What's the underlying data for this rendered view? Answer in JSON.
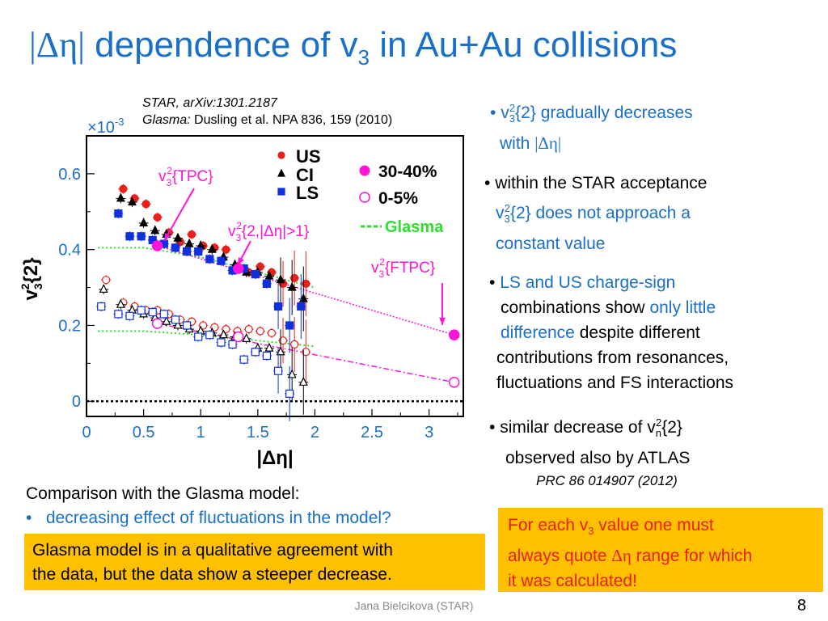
{
  "title": {
    "bars": "|Δη|",
    "text_a": " dependence of v",
    "sub": "3",
    "text_b": " in Au+Au collisions"
  },
  "refs": {
    "line1": "STAR, arXiv:1301.2187",
    "line2_label": "Glasma:",
    "line2_rest": " Dusling et al. NPA 836, 159 (2010)"
  },
  "bullets": {
    "b1": {
      "p1": "v",
      "sub": "3",
      "sup": "2",
      "p2": "{2} gradually decreases",
      "l2a": "with ",
      "l2b": "|Δη|"
    },
    "b2": {
      "l1": "within the STAR acceptance",
      "l2a": "v",
      "sub": "3",
      "sup": "2",
      "l2b": "{2} does not approach a",
      "l3": "constant value"
    },
    "b3": {
      "l1": "LS and US charge-sign",
      "l2a": "combinations show ",
      "l2b": "only little",
      "l3a": "difference",
      "l3b": " despite different",
      "l4": "contributions from resonances,",
      "l5": "fluctuations and FS  interactions"
    },
    "b4": {
      "l1a": "similar decrease of v",
      "sub": "n",
      "sup": "2",
      "l1b": "{2}",
      "l2": "observed also by ATLAS",
      "l3": "PRC 86 014907 (2012)"
    }
  },
  "comparison": {
    "line1": "Comparison with the Glasma model:",
    "line2": "decreasing effect of fluctuations in the model?"
  },
  "box1": {
    "line1": "Glasma model is in a qualitative agreement with",
    "line2": "the data, but the data show a steeper decrease."
  },
  "box2": {
    "l1a": "For each v",
    "sub": "3",
    "l1b": " value one must",
    "l2a": "always quote ",
    "l2b": "Δη",
    "l2c": " range for which",
    "l3": "it was calculated!"
  },
  "footer": "Jana Bielcikova (STAR)",
  "page_number": "8",
  "colors": {
    "title_blue": "#1a6fc8",
    "box": "#ffc000",
    "red_text": "#e8201a",
    "us": "#e8201a",
    "ls": "#1030e0",
    "magenta": "#ff14d8",
    "glasma": "#2ee02e"
  },
  "chart_data": {
    "type": "scatter",
    "xlabel": "|Δη|",
    "ylabel": "v3^2{2}",
    "y_multiplier": "×10-3",
    "xlim": [
      0,
      3.3
    ],
    "ylim": [
      -0.04,
      0.7
    ],
    "xticks": [
      "0",
      "0.5",
      "1",
      "1.5",
      "2",
      "2.5",
      "3"
    ],
    "yticks": [
      "0",
      "0.2",
      "0.4",
      "0.6"
    ],
    "legend": [
      {
        "label": "US",
        "marker": "filled-circle",
        "color": "#e8201a"
      },
      {
        "label": "CI",
        "marker": "filled-triangle",
        "color": "#000000"
      },
      {
        "label": "LS",
        "marker": "filled-square",
        "color": "#1030e0"
      },
      {
        "label": "30-40%",
        "marker": "big-filled-circle",
        "color": "#ff14d8"
      },
      {
        "label": "0-5%",
        "marker": "big-open-circle",
        "color": "#ff14d8"
      },
      {
        "label": "Glasma",
        "marker": "dashed-line",
        "color": "#2ee02e"
      }
    ],
    "annotations": [
      {
        "a": "v",
        "sub": "3",
        "sup": "2",
        "b": "{TPC}"
      },
      {
        "a": "v",
        "sub": "3",
        "sup": "2",
        "b": "{2,|Δη|>1}"
      },
      {
        "a": "v",
        "sub": "3",
        "sup": "2",
        "b": "{FTPC}"
      }
    ],
    "series": [
      {
        "name": "US",
        "centrality": "30-40%",
        "x": [
          0.3,
          0.4,
          0.5,
          0.6,
          0.7,
          0.8,
          0.9,
          1.0,
          1.1,
          1.2,
          1.3,
          1.4,
          1.5,
          1.6,
          1.7,
          1.8,
          1.9
        ],
        "y": [
          0.56,
          0.535,
          0.52,
          0.485,
          0.445,
          0.42,
          0.44,
          0.41,
          0.405,
          0.4,
          0.355,
          0.34,
          0.355,
          0.34,
          0.31,
          0.325,
          0.31
        ]
      },
      {
        "name": "CI",
        "centrality": "30-40%",
        "x": [
          0.3,
          0.4,
          0.5,
          0.6,
          0.7,
          0.8,
          0.9,
          1.0,
          1.1,
          1.2,
          1.3,
          1.4,
          1.5,
          1.6,
          1.7,
          1.8,
          1.9
        ],
        "y": [
          0.535,
          0.525,
          0.47,
          0.45,
          0.44,
          0.43,
          0.415,
          0.41,
          0.4,
          0.38,
          0.36,
          0.34,
          0.34,
          0.33,
          0.32,
          0.3,
          0.27
        ]
      },
      {
        "name": "LS",
        "centrality": "30-40%",
        "x": [
          0.3,
          0.4,
          0.5,
          0.6,
          0.7,
          0.8,
          0.9,
          1.0,
          1.1,
          1.2,
          1.3,
          1.4,
          1.5,
          1.6,
          1.7,
          1.8,
          1.9
        ],
        "y": [
          0.495,
          0.435,
          0.435,
          0.425,
          0.415,
          0.405,
          0.395,
          0.395,
          0.375,
          0.37,
          0.345,
          0.35,
          0.335,
          0.31,
          0.25,
          0.2,
          0.25
        ]
      },
      {
        "name": "US",
        "centrality": "0-5%",
        "x": [
          0.15,
          0.3,
          0.4,
          0.5,
          0.6,
          0.7,
          0.8,
          0.9,
          1.0,
          1.1,
          1.2,
          1.3,
          1.4,
          1.5,
          1.6,
          1.7,
          1.8,
          1.9
        ],
        "y": [
          0.32,
          0.26,
          0.25,
          0.24,
          0.24,
          0.23,
          0.215,
          0.21,
          0.2,
          0.195,
          0.19,
          0.185,
          0.19,
          0.185,
          0.18,
          0.16,
          0.15,
          0.13
        ]
      },
      {
        "name": "CI",
        "centrality": "0-5%",
        "x": [
          0.15,
          0.3,
          0.4,
          0.5,
          0.6,
          0.7,
          0.8,
          0.9,
          1.0,
          1.1,
          1.2,
          1.3,
          1.4,
          1.5,
          1.6,
          1.7,
          1.8,
          1.9
        ],
        "y": [
          0.295,
          0.255,
          0.24,
          0.23,
          0.22,
          0.21,
          0.2,
          0.19,
          0.185,
          0.18,
          0.175,
          0.17,
          0.165,
          0.14,
          0.14,
          0.13,
          0.07,
          0.05
        ]
      },
      {
        "name": "LS",
        "centrality": "0-5%",
        "x": [
          0.15,
          0.3,
          0.4,
          0.5,
          0.6,
          0.7,
          0.8,
          0.9,
          1.0,
          1.1,
          1.2,
          1.3,
          1.4,
          1.5,
          1.6,
          1.7,
          1.8
        ],
        "y": [
          0.25,
          0.23,
          0.225,
          0.24,
          0.235,
          0.23,
          0.215,
          0.2,
          0.17,
          0.175,
          0.155,
          0.15,
          0.11,
          0.13,
          0.12,
          0.08,
          0.02
        ]
      },
      {
        "name": "30-40%",
        "label": "TPC / FTPC",
        "x": [
          0.62,
          1.33,
          3.22
        ],
        "y": [
          0.41,
          0.35,
          0.175
        ]
      },
      {
        "name": "0-5%",
        "label": "TPC / FTPC",
        "x": [
          0.62,
          1.33,
          3.22
        ],
        "y": [
          0.205,
          0.17,
          0.05
        ]
      },
      {
        "name": "Glasma",
        "centrality": "30-40%",
        "x": [
          0.1,
          0.5,
          1.0,
          1.5,
          2.0
        ],
        "y": [
          0.405,
          0.405,
          0.38,
          0.34,
          0.3
        ]
      },
      {
        "name": "Glasma",
        "centrality": "0-5%",
        "x": [
          0.1,
          0.5,
          1.0,
          1.5,
          2.0
        ],
        "y": [
          0.185,
          0.185,
          0.175,
          0.16,
          0.145
        ]
      }
    ],
    "fit_lines": [
      {
        "color": "#ff14d8",
        "from": [
          0.62,
          0.41
        ],
        "to": [
          3.22,
          0.175
        ]
      },
      {
        "color": "#ff14d8",
        "from": [
          0.62,
          0.205
        ],
        "to": [
          3.22,
          0.05
        ]
      }
    ],
    "zero_line": true,
    "grid": false
  }
}
